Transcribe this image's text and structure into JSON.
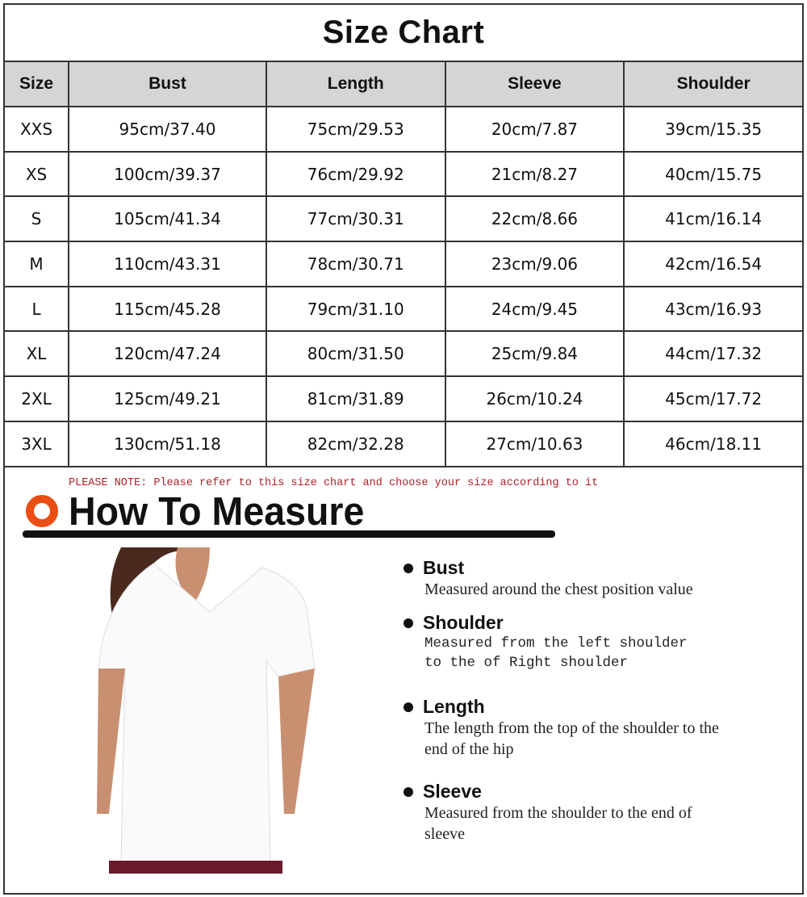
{
  "size_chart": {
    "title": "Size Chart",
    "headers": [
      "Size",
      "Bust",
      "Length",
      "Sleeve",
      "Shoulder"
    ],
    "rows": [
      [
        "XXS",
        "95cm/37.40",
        "75cm/29.53",
        "20cm/7.87",
        "39cm/15.35"
      ],
      [
        "XS",
        "100cm/39.37",
        "76cm/29.92",
        "21cm/8.27",
        "40cm/15.75"
      ],
      [
        "S",
        "105cm/41.34",
        "77cm/30.31",
        "22cm/8.66",
        "41cm/16.14"
      ],
      [
        "M",
        "110cm/43.31",
        "78cm/30.71",
        "23cm/9.06",
        "42cm/16.54"
      ],
      [
        "L",
        "115cm/45.28",
        "79cm/31.10",
        "24cm/9.45",
        "43cm/16.93"
      ],
      [
        "XL",
        "120cm/47.24",
        "80cm/31.50",
        "25cm/9.84",
        "44cm/17.32"
      ],
      [
        "2XL",
        "125cm/49.21",
        "81cm/31.89",
        "26cm/10.24",
        "45cm/17.72"
      ],
      [
        "3XL",
        "130cm/51.18",
        "82cm/32.28",
        "27cm/10.63",
        "46cm/18.11"
      ]
    ]
  },
  "measure": {
    "note": "PLEASE NOTE: Please refer to this size chart and choose your size according to it",
    "title": "How To Measure",
    "accent": "#ea4e12",
    "items": [
      {
        "name": "Bust",
        "desc": "Measured around the chest position value"
      },
      {
        "name": "Shoulder",
        "desc": "Measured from the left shoulder to the of Right shoulder"
      },
      {
        "name": "Length",
        "desc": "The length from the top of the shoulder to the end of the hip"
      },
      {
        "name": "Sleeve",
        "desc": "Measured from the shoulder to the end of sleeve"
      }
    ]
  }
}
